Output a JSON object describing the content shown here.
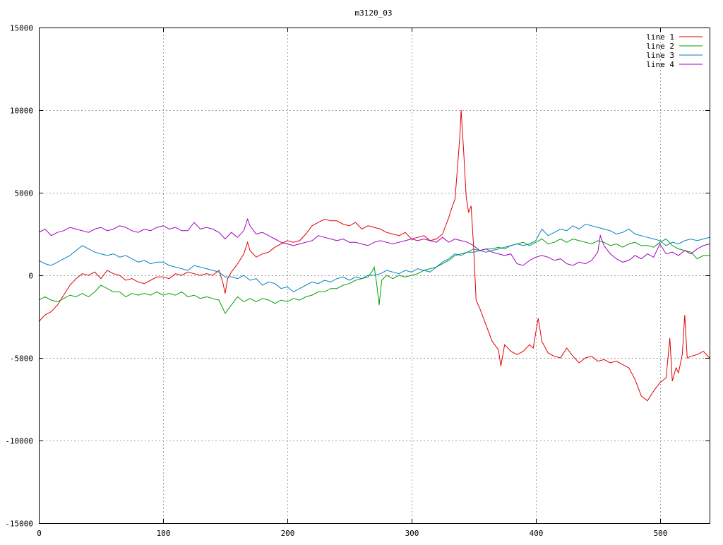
{
  "chart_data": {
    "type": "line",
    "title": "m3120_03",
    "xlabel": "",
    "ylabel": "",
    "xlim": [
      0,
      540
    ],
    "ylim": [
      -15000,
      15000
    ],
    "x_ticks": [
      0,
      100,
      200,
      300,
      400,
      500
    ],
    "y_ticks": [
      -15000,
      -10000,
      -5000,
      0,
      5000,
      10000,
      15000
    ],
    "x_tick_labels": [
      "0",
      "100",
      "200",
      "300",
      "400",
      "500"
    ],
    "y_tick_labels": [
      "-15000",
      "-10000",
      "-5000",
      "0",
      "5000",
      "10000",
      "15000"
    ],
    "grid": true,
    "legend_position": "top-right",
    "series": [
      {
        "name": "line 1",
        "color": "#e00000",
        "x": [
          0,
          5,
          10,
          15,
          20,
          25,
          30,
          35,
          40,
          45,
          50,
          55,
          60,
          65,
          70,
          75,
          80,
          85,
          90,
          95,
          100,
          105,
          110,
          115,
          120,
          125,
          130,
          135,
          140,
          145,
          148,
          150,
          152,
          155,
          160,
          165,
          168,
          170,
          175,
          180,
          185,
          190,
          195,
          200,
          205,
          210,
          215,
          220,
          225,
          230,
          235,
          240,
          245,
          250,
          255,
          260,
          265,
          270,
          275,
          280,
          285,
          290,
          295,
          300,
          305,
          310,
          315,
          320,
          325,
          328,
          330,
          333,
          335,
          337,
          339,
          340,
          342,
          344,
          346,
          348,
          350,
          352,
          355,
          360,
          365,
          370,
          372,
          375,
          380,
          385,
          390,
          395,
          398,
          400,
          402,
          405,
          410,
          415,
          420,
          425,
          430,
          435,
          440,
          445,
          450,
          455,
          460,
          465,
          470,
          475,
          480,
          485,
          490,
          495,
          500,
          505,
          508,
          510,
          513,
          515,
          518,
          520,
          522,
          525,
          530,
          535,
          540
        ],
        "values": [
          -2800,
          -2400,
          -2200,
          -1800,
          -1200,
          -600,
          -200,
          100,
          0,
          200,
          -200,
          300,
          100,
          0,
          -300,
          -200,
          -400,
          -500,
          -300,
          -100,
          -100,
          -200,
          100,
          0,
          200,
          100,
          0,
          100,
          0,
          300,
          -400,
          -1100,
          -200,
          200,
          700,
          1300,
          2000,
          1500,
          1100,
          1300,
          1400,
          1700,
          1900,
          2100,
          2000,
          2100,
          2500,
          3000,
          3200,
          3400,
          3300,
          3300,
          3100,
          3000,
          3200,
          2800,
          3000,
          2900,
          2800,
          2600,
          2500,
          2400,
          2600,
          2200,
          2300,
          2400,
          2100,
          2200,
          2500,
          3100,
          3500,
          4200,
          4600,
          6500,
          8500,
          10000,
          7500,
          4800,
          3800,
          4200,
          1800,
          -1500,
          -2000,
          -3000,
          -4000,
          -4500,
          -5500,
          -4200,
          -4600,
          -4800,
          -4600,
          -4200,
          -4400,
          -3500,
          -2600,
          -4000,
          -4700,
          -4900,
          -5000,
          -4400,
          -4900,
          -5300,
          -5000,
          -4900,
          -5200,
          -5100,
          -5300,
          -5200,
          -5400,
          -5600,
          -6300,
          -7300,
          -7600,
          -7000,
          -6500,
          -6200,
          -3800,
          -6400,
          -5600,
          -5900,
          -4800,
          -2400,
          -5000,
          -4900,
          -4800,
          -4600,
          -5000
        ]
      },
      {
        "name": "line 2",
        "color": "#00a000",
        "x": [
          0,
          5,
          10,
          15,
          20,
          25,
          30,
          35,
          40,
          45,
          50,
          55,
          60,
          65,
          70,
          75,
          80,
          85,
          90,
          95,
          100,
          105,
          110,
          115,
          120,
          125,
          130,
          135,
          140,
          145,
          150,
          155,
          160,
          165,
          170,
          175,
          180,
          185,
          190,
          195,
          200,
          205,
          210,
          215,
          220,
          225,
          230,
          235,
          240,
          245,
          250,
          255,
          260,
          265,
          268,
          270,
          272,
          274,
          276,
          280,
          285,
          290,
          295,
          300,
          305,
          310,
          315,
          320,
          325,
          330,
          335,
          340,
          345,
          350,
          355,
          360,
          365,
          370,
          375,
          380,
          385,
          390,
          395,
          400,
          405,
          410,
          415,
          420,
          425,
          430,
          435,
          440,
          445,
          450,
          455,
          460,
          465,
          470,
          475,
          480,
          485,
          490,
          495,
          500,
          505,
          510,
          515,
          520,
          525,
          530,
          535,
          540
        ],
        "values": [
          -1500,
          -1300,
          -1500,
          -1600,
          -1400,
          -1200,
          -1300,
          -1100,
          -1300,
          -1000,
          -600,
          -800,
          -1000,
          -1000,
          -1300,
          -1100,
          -1200,
          -1100,
          -1200,
          -1000,
          -1200,
          -1100,
          -1200,
          -1000,
          -1300,
          -1200,
          -1400,
          -1300,
          -1400,
          -1500,
          -2300,
          -1800,
          -1300,
          -1600,
          -1400,
          -1600,
          -1400,
          -1500,
          -1700,
          -1500,
          -1600,
          -1400,
          -1500,
          -1300,
          -1200,
          -1000,
          -1000,
          -800,
          -800,
          -600,
          -500,
          -300,
          -200,
          -100,
          200,
          500,
          -500,
          -1800,
          -300,
          0,
          -200,
          0,
          -100,
          0,
          100,
          300,
          400,
          500,
          700,
          900,
          1200,
          1300,
          1400,
          1600,
          1500,
          1600,
          1600,
          1700,
          1600,
          1800,
          1900,
          2000,
          1800,
          2000,
          2200,
          1900,
          2000,
          2200,
          2000,
          2200,
          2100,
          2000,
          1900,
          2100,
          2000,
          1800,
          1900,
          1700,
          1900,
          2000,
          1800,
          1800,
          1700,
          2000,
          2200,
          1800,
          1600,
          1500,
          1400,
          1000,
          1200,
          1200
        ]
      },
      {
        "name": "line 3",
        "color": "#0080c0",
        "x": [
          0,
          5,
          10,
          15,
          20,
          25,
          30,
          35,
          40,
          45,
          50,
          55,
          60,
          65,
          70,
          75,
          80,
          85,
          90,
          95,
          100,
          105,
          110,
          115,
          120,
          125,
          130,
          135,
          140,
          145,
          150,
          155,
          160,
          165,
          170,
          175,
          180,
          185,
          190,
          195,
          200,
          205,
          210,
          215,
          220,
          225,
          230,
          235,
          240,
          245,
          250,
          255,
          260,
          265,
          270,
          275,
          280,
          285,
          290,
          295,
          300,
          305,
          310,
          315,
          320,
          325,
          330,
          335,
          340,
          345,
          350,
          355,
          360,
          365,
          370,
          375,
          380,
          385,
          390,
          395,
          400,
          405,
          410,
          415,
          420,
          425,
          430,
          435,
          440,
          445,
          450,
          455,
          460,
          465,
          470,
          475,
          480,
          485,
          490,
          495,
          500,
          505,
          510,
          515,
          520,
          525,
          530,
          535,
          540
        ],
        "values": [
          900,
          700,
          600,
          800,
          1000,
          1200,
          1500,
          1800,
          1600,
          1400,
          1300,
          1200,
          1300,
          1100,
          1200,
          1000,
          800,
          900,
          700,
          800,
          800,
          600,
          500,
          400,
          300,
          600,
          500,
          400,
          300,
          200,
          -100,
          -100,
          -200,
          0,
          -300,
          -200,
          -600,
          -400,
          -500,
          -800,
          -700,
          -1000,
          -800,
          -600,
          -400,
          -500,
          -300,
          -400,
          -200,
          -100,
          -300,
          -100,
          -200,
          0,
          0,
          100,
          300,
          200,
          100,
          300,
          200,
          400,
          300,
          200,
          500,
          800,
          1000,
          1300,
          1200,
          1400,
          1400,
          1500,
          1400,
          1500,
          1600,
          1700,
          1800,
          1900,
          1800,
          1900,
          2100,
          2800,
          2400,
          2600,
          2800,
          2700,
          3000,
          2800,
          3100,
          3000,
          2900,
          2800,
          2700,
          2500,
          2600,
          2800,
          2500,
          2400,
          2300,
          2200,
          2100,
          1800,
          2000,
          1900,
          2100,
          2200,
          2100,
          2200,
          2300
        ]
      },
      {
        "name": "line 4",
        "color": "#a000c0",
        "x": [
          0,
          5,
          10,
          15,
          20,
          25,
          30,
          35,
          40,
          45,
          50,
          55,
          60,
          65,
          70,
          75,
          80,
          85,
          90,
          95,
          100,
          105,
          110,
          115,
          120,
          125,
          130,
          135,
          140,
          145,
          150,
          155,
          160,
          165,
          168,
          170,
          175,
          180,
          185,
          190,
          195,
          200,
          205,
          210,
          215,
          220,
          225,
          230,
          235,
          240,
          245,
          250,
          255,
          260,
          265,
          270,
          275,
          280,
          285,
          290,
          295,
          300,
          305,
          310,
          315,
          320,
          325,
          330,
          335,
          340,
          345,
          350,
          355,
          360,
          365,
          370,
          375,
          380,
          385,
          390,
          395,
          400,
          405,
          410,
          415,
          420,
          425,
          430,
          435,
          440,
          445,
          450,
          452,
          455,
          460,
          465,
          470,
          475,
          480,
          485,
          490,
          495,
          500,
          505,
          510,
          515,
          520,
          525,
          530,
          535,
          540
        ],
        "values": [
          2600,
          2800,
          2400,
          2600,
          2700,
          2900,
          2800,
          2700,
          2600,
          2800,
          2900,
          2700,
          2800,
          3000,
          2900,
          2700,
          2600,
          2800,
          2700,
          2900,
          3000,
          2800,
          2900,
          2700,
          2700,
          3200,
          2800,
          2900,
          2800,
          2600,
          2200,
          2600,
          2300,
          2700,
          3400,
          3000,
          2500,
          2600,
          2400,
          2200,
          2000,
          1900,
          1800,
          1900,
          2000,
          2100,
          2400,
          2300,
          2200,
          2100,
          2200,
          2000,
          2000,
          1900,
          1800,
          2000,
          2100,
          2000,
          1900,
          2000,
          2100,
          2200,
          2100,
          2200,
          2100,
          2000,
          2300,
          2000,
          2200,
          2100,
          2000,
          1800,
          1500,
          1600,
          1400,
          1300,
          1200,
          1300,
          700,
          600,
          900,
          1100,
          1200,
          1100,
          900,
          1000,
          700,
          600,
          800,
          700,
          900,
          1400,
          2400,
          1800,
          1300,
          1000,
          800,
          900,
          1200,
          1000,
          1300,
          1100,
          1900,
          1300,
          1400,
          1200,
          1500,
          1300,
          1600,
          1800,
          1900
        ]
      }
    ]
  }
}
